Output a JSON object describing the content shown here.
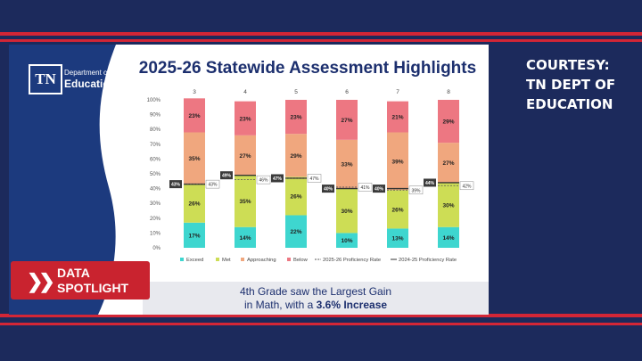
{
  "logo": {
    "mark": "TN",
    "dept_small": "Department of",
    "dept_big": "Education"
  },
  "slide_title": "2025-26 Statewide Assessment Highlights",
  "caption": {
    "line1": "4th Grade saw the Largest Gain",
    "line2_prefix": "in Math, with a ",
    "line2_bold": "3.6% Increase"
  },
  "spotlight": {
    "line1": "DATA",
    "line2": "SPOTLIGHT"
  },
  "courtesy": [
    "COURTESY:",
    "TN DEPT OF",
    "EDUCATION"
  ],
  "colors": {
    "background": "#1c2a5c",
    "stripe": "#d32636",
    "exceed": "#3ed6cf",
    "met": "#cddd55",
    "approaching": "#f0a77e",
    "below": "#ed7782",
    "rate_label": "#3b3b3b"
  },
  "chart_data": {
    "type": "bar",
    "stacked": true,
    "categories": [
      "3",
      "4",
      "5",
      "6",
      "7",
      "8"
    ],
    "series": [
      {
        "name": "Exceed",
        "values": [
          17,
          14,
          22,
          10,
          13,
          14
        ]
      },
      {
        "name": "Met",
        "values": [
          26,
          35,
          26,
          30,
          26,
          30
        ]
      },
      {
        "name": "Approaching",
        "values": [
          35,
          27,
          29,
          33,
          39,
          27
        ]
      },
      {
        "name": "Below",
        "values": [
          23,
          23,
          23,
          27,
          21,
          29
        ]
      }
    ],
    "value_labels": {
      "Exceed": [
        "17%",
        "14%",
        "22%",
        "10%",
        "13%",
        "14%"
      ],
      "Met": [
        "26%",
        "35%",
        "26%",
        "30%",
        "26%",
        "30%"
      ],
      "Approaching": [
        "35%",
        "27%",
        "29%",
        "33%",
        "39%",
        "27%"
      ],
      "Below": [
        "23%",
        "23%",
        "23%",
        "27%",
        "21%",
        "29%"
      ]
    },
    "proficiency_2025_26": {
      "name": "2025-26 Proficiency Rate",
      "values": [
        43,
        49,
        47,
        40,
        40,
        44
      ],
      "labels": [
        "43%",
        "49%",
        "47%",
        "40%",
        "40%",
        "44%"
      ]
    },
    "proficiency_2024_25": {
      "name": "2024-25 Proficiency Rate",
      "values": [
        43,
        46,
        47,
        41,
        39,
        42
      ],
      "labels": [
        "43%",
        "46%",
        "47%",
        "41%",
        "39%",
        "42%"
      ]
    },
    "ylim": [
      0,
      100
    ],
    "y_ticks": [
      "0%",
      "10%",
      "20%",
      "30%",
      "40%",
      "50%",
      "60%",
      "70%",
      "80%",
      "90%",
      "100%"
    ],
    "legend_position": "bottom",
    "legend": [
      "Exceed",
      "Met",
      "Approaching",
      "Below",
      "2025-26 Proficiency Rate",
      "2024-25 Proficiency Rate"
    ],
    "grid": false
  }
}
